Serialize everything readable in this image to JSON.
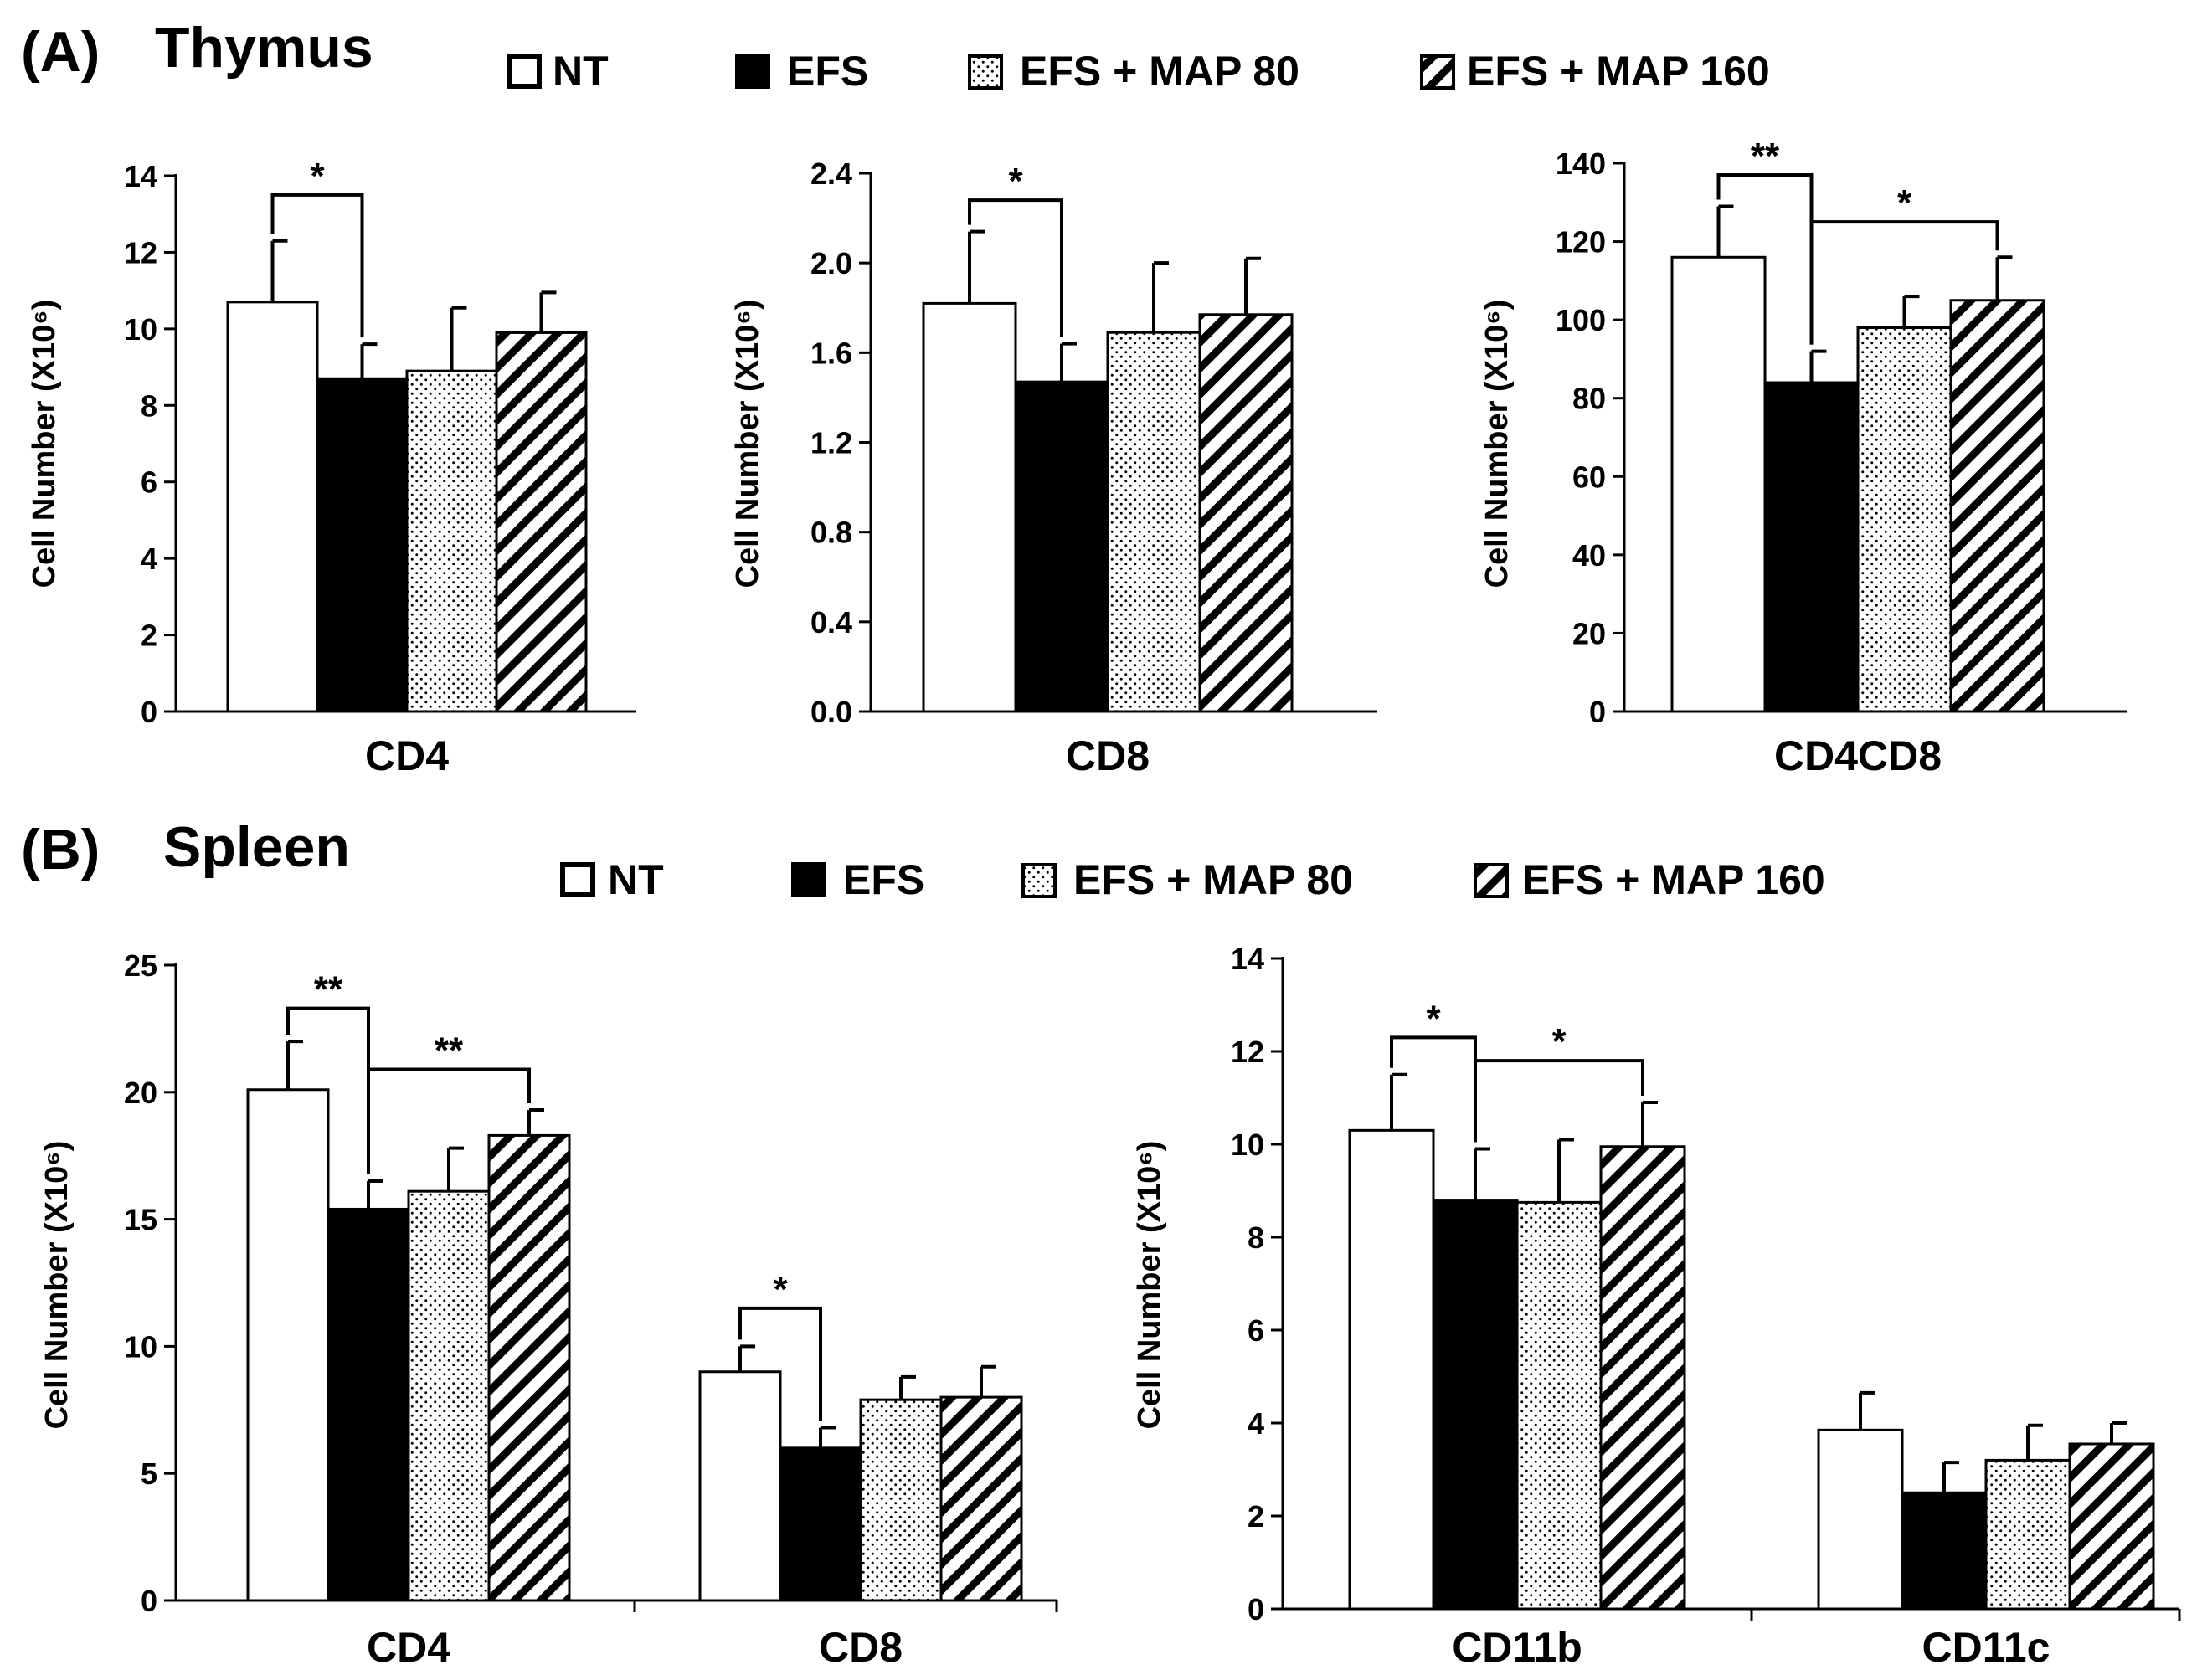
{
  "panels": {
    "A": {
      "label": "(A)",
      "title": "Thymus"
    },
    "B": {
      "label": "(B)",
      "title": "Spleen"
    }
  },
  "legend": [
    {
      "key": "nt",
      "label": "NT",
      "fill": "white"
    },
    {
      "key": "efs",
      "label": "EFS",
      "fill": "black"
    },
    {
      "key": "map80",
      "label": "EFS + MAP 80",
      "fill": "dots"
    },
    {
      "key": "map160",
      "label": "EFS + MAP 160",
      "fill": "hatch"
    }
  ],
  "colors": {
    "bar_edge": "#000000",
    "efs_fill": "#000000",
    "nt_fill": "#ffffff",
    "background": "#ffffff"
  },
  "chart_data": [
    {
      "id": "thymus-cd4",
      "panel": "A",
      "type": "bar",
      "ylabel": "Cell Number (X10⁶)",
      "ylim": [
        0,
        14
      ],
      "yticks": [
        0,
        2,
        4,
        6,
        8,
        10,
        12,
        14
      ],
      "ytick_labels": [
        "0",
        "2",
        "4",
        "6",
        "8",
        "10",
        "12",
        "14"
      ],
      "categories": [
        "CD4"
      ],
      "series": [
        {
          "name": "NT",
          "values": [
            10.7
          ],
          "errors": [
            1.6
          ]
        },
        {
          "name": "EFS",
          "values": [
            8.7
          ],
          "errors": [
            0.9
          ]
        },
        {
          "name": "EFS + MAP 80",
          "values": [
            8.9
          ],
          "errors": [
            1.65
          ]
        },
        {
          "name": "EFS + MAP 160",
          "values": [
            9.9
          ],
          "errors": [
            1.05
          ]
        }
      ],
      "significance": [
        {
          "category": 0,
          "from": 0,
          "to": 1,
          "label": "*",
          "level": 13.5
        }
      ]
    },
    {
      "id": "thymus-cd8",
      "panel": "A",
      "type": "bar",
      "ylabel": "Cell Number (X10⁶)",
      "ylim": [
        0,
        2.4
      ],
      "yticks": [
        0,
        0.4,
        0.8,
        1.2,
        1.6,
        2.0,
        2.4
      ],
      "ytick_labels": [
        "0.0",
        "0.4",
        "0.8",
        "1.2",
        "1.6",
        "2.0",
        "2.4"
      ],
      "categories": [
        "CD8"
      ],
      "series": [
        {
          "name": "NT",
          "values": [
            1.82
          ],
          "errors": [
            0.32
          ]
        },
        {
          "name": "EFS",
          "values": [
            1.47
          ],
          "errors": [
            0.17
          ]
        },
        {
          "name": "EFS + MAP 80",
          "values": [
            1.69
          ],
          "errors": [
            0.31
          ]
        },
        {
          "name": "EFS + MAP 160",
          "values": [
            1.77
          ],
          "errors": [
            0.25
          ]
        }
      ],
      "significance": [
        {
          "category": 0,
          "from": 0,
          "to": 1,
          "label": "*",
          "level": 2.28
        }
      ]
    },
    {
      "id": "thymus-cd4cd8",
      "panel": "A",
      "type": "bar",
      "ylabel": "Cell Number (X10⁶)",
      "ylim": [
        0,
        140
      ],
      "yticks": [
        0,
        20,
        40,
        60,
        80,
        100,
        120,
        140
      ],
      "ytick_labels": [
        "0",
        "20",
        "40",
        "60",
        "80",
        "100",
        "120",
        "140"
      ],
      "categories": [
        "CD4CD8"
      ],
      "series": [
        {
          "name": "NT",
          "values": [
            116
          ],
          "errors": [
            13
          ]
        },
        {
          "name": "EFS",
          "values": [
            84
          ],
          "errors": [
            8
          ]
        },
        {
          "name": "EFS + MAP 80",
          "values": [
            98
          ],
          "errors": [
            8
          ]
        },
        {
          "name": "EFS + MAP 160",
          "values": [
            105
          ],
          "errors": [
            11
          ]
        }
      ],
      "significance": [
        {
          "category": 0,
          "from": 0,
          "to": 1,
          "label": "**",
          "level": 137
        },
        {
          "category": 0,
          "from": 1,
          "to": 3,
          "label": "*",
          "level": 125
        }
      ]
    },
    {
      "id": "spleen-t",
      "panel": "B",
      "type": "bar",
      "ylabel": "Cell Number (X10⁶)",
      "ylim": [
        0,
        25
      ],
      "yticks": [
        0,
        5,
        10,
        15,
        20,
        25
      ],
      "ytick_labels": [
        "0",
        "5",
        "10",
        "15",
        "20",
        "25"
      ],
      "categories": [
        "CD4",
        "CD8"
      ],
      "series": [
        {
          "name": "NT",
          "values": [
            20.1,
            9.0
          ],
          "errors": [
            1.9,
            1.0
          ]
        },
        {
          "name": "EFS",
          "values": [
            15.4,
            6.0
          ],
          "errors": [
            1.1,
            0.8
          ]
        },
        {
          "name": "EFS + MAP 80",
          "values": [
            16.1,
            7.9
          ],
          "errors": [
            1.7,
            0.9
          ]
        },
        {
          "name": "EFS + MAP 160",
          "values": [
            18.3,
            8.0
          ],
          "errors": [
            1.0,
            1.2
          ]
        }
      ],
      "significance": [
        {
          "category": 0,
          "from": 0,
          "to": 1,
          "label": "**",
          "level": 23.3
        },
        {
          "category": 0,
          "from": 1,
          "to": 3,
          "label": "**",
          "level": 20.9
        },
        {
          "category": 1,
          "from": 0,
          "to": 1,
          "label": "*",
          "level": 11.5
        }
      ]
    },
    {
      "id": "spleen-dc",
      "panel": "B",
      "type": "bar",
      "ylabel": "Cell Number (X10⁶)",
      "ylim": [
        0,
        14
      ],
      "yticks": [
        0,
        2,
        4,
        6,
        8,
        10,
        12,
        14
      ],
      "ytick_labels": [
        "0",
        "2",
        "4",
        "6",
        "8",
        "10",
        "12",
        "14"
      ],
      "categories": [
        "CD11b",
        "CD11c"
      ],
      "series": [
        {
          "name": "NT",
          "values": [
            10.3,
            3.85
          ],
          "errors": [
            1.2,
            0.8
          ]
        },
        {
          "name": "EFS",
          "values": [
            8.8,
            2.5
          ],
          "errors": [
            1.1,
            0.65
          ]
        },
        {
          "name": "EFS + MAP 80",
          "values": [
            8.75,
            3.2
          ],
          "errors": [
            1.35,
            0.75
          ]
        },
        {
          "name": "EFS + MAP 160",
          "values": [
            9.95,
            3.55
          ],
          "errors": [
            0.95,
            0.45
          ]
        }
      ],
      "significance": [
        {
          "category": 0,
          "from": 0,
          "to": 1,
          "label": "*",
          "level": 12.3
        },
        {
          "category": 0,
          "from": 1,
          "to": 3,
          "label": "*",
          "level": 11.8
        }
      ]
    }
  ]
}
